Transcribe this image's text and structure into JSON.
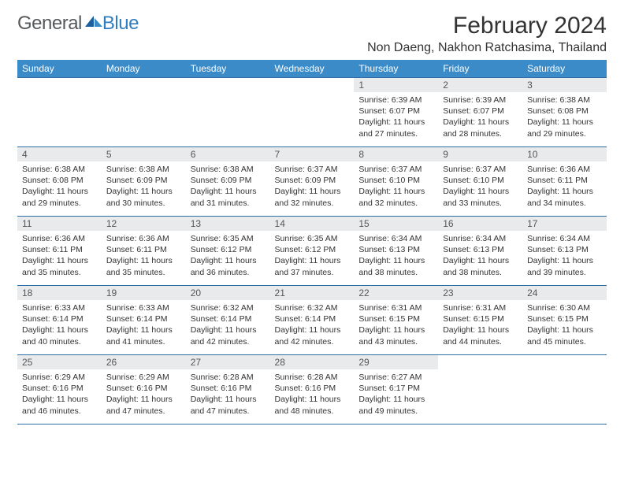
{
  "brand": {
    "main": "General",
    "accent": "Blue"
  },
  "title": "February 2024",
  "location": "Non Daeng, Nakhon Ratchasima, Thailand",
  "colors": {
    "header_bg": "#3b8bc9",
    "header_fg": "#ffffff",
    "daynum_bg": "#e9eaeb",
    "border": "#2f6fa5",
    "logo_accent": "#2f7ec2",
    "logo_main": "#555a5e"
  },
  "weekdays": [
    "Sunday",
    "Monday",
    "Tuesday",
    "Wednesday",
    "Thursday",
    "Friday",
    "Saturday"
  ],
  "weeks": [
    [
      null,
      null,
      null,
      null,
      {
        "n": "1",
        "sr": "6:39 AM",
        "ss": "6:07 PM",
        "dl": "11 hours and 27 minutes."
      },
      {
        "n": "2",
        "sr": "6:39 AM",
        "ss": "6:07 PM",
        "dl": "11 hours and 28 minutes."
      },
      {
        "n": "3",
        "sr": "6:38 AM",
        "ss": "6:08 PM",
        "dl": "11 hours and 29 minutes."
      }
    ],
    [
      {
        "n": "4",
        "sr": "6:38 AM",
        "ss": "6:08 PM",
        "dl": "11 hours and 29 minutes."
      },
      {
        "n": "5",
        "sr": "6:38 AM",
        "ss": "6:09 PM",
        "dl": "11 hours and 30 minutes."
      },
      {
        "n": "6",
        "sr": "6:38 AM",
        "ss": "6:09 PM",
        "dl": "11 hours and 31 minutes."
      },
      {
        "n": "7",
        "sr": "6:37 AM",
        "ss": "6:09 PM",
        "dl": "11 hours and 32 minutes."
      },
      {
        "n": "8",
        "sr": "6:37 AM",
        "ss": "6:10 PM",
        "dl": "11 hours and 32 minutes."
      },
      {
        "n": "9",
        "sr": "6:37 AM",
        "ss": "6:10 PM",
        "dl": "11 hours and 33 minutes."
      },
      {
        "n": "10",
        "sr": "6:36 AM",
        "ss": "6:11 PM",
        "dl": "11 hours and 34 minutes."
      }
    ],
    [
      {
        "n": "11",
        "sr": "6:36 AM",
        "ss": "6:11 PM",
        "dl": "11 hours and 35 minutes."
      },
      {
        "n": "12",
        "sr": "6:36 AM",
        "ss": "6:11 PM",
        "dl": "11 hours and 35 minutes."
      },
      {
        "n": "13",
        "sr": "6:35 AM",
        "ss": "6:12 PM",
        "dl": "11 hours and 36 minutes."
      },
      {
        "n": "14",
        "sr": "6:35 AM",
        "ss": "6:12 PM",
        "dl": "11 hours and 37 minutes."
      },
      {
        "n": "15",
        "sr": "6:34 AM",
        "ss": "6:13 PM",
        "dl": "11 hours and 38 minutes."
      },
      {
        "n": "16",
        "sr": "6:34 AM",
        "ss": "6:13 PM",
        "dl": "11 hours and 38 minutes."
      },
      {
        "n": "17",
        "sr": "6:34 AM",
        "ss": "6:13 PM",
        "dl": "11 hours and 39 minutes."
      }
    ],
    [
      {
        "n": "18",
        "sr": "6:33 AM",
        "ss": "6:14 PM",
        "dl": "11 hours and 40 minutes."
      },
      {
        "n": "19",
        "sr": "6:33 AM",
        "ss": "6:14 PM",
        "dl": "11 hours and 41 minutes."
      },
      {
        "n": "20",
        "sr": "6:32 AM",
        "ss": "6:14 PM",
        "dl": "11 hours and 42 minutes."
      },
      {
        "n": "21",
        "sr": "6:32 AM",
        "ss": "6:14 PM",
        "dl": "11 hours and 42 minutes."
      },
      {
        "n": "22",
        "sr": "6:31 AM",
        "ss": "6:15 PM",
        "dl": "11 hours and 43 minutes."
      },
      {
        "n": "23",
        "sr": "6:31 AM",
        "ss": "6:15 PM",
        "dl": "11 hours and 44 minutes."
      },
      {
        "n": "24",
        "sr": "6:30 AM",
        "ss": "6:15 PM",
        "dl": "11 hours and 45 minutes."
      }
    ],
    [
      {
        "n": "25",
        "sr": "6:29 AM",
        "ss": "6:16 PM",
        "dl": "11 hours and 46 minutes."
      },
      {
        "n": "26",
        "sr": "6:29 AM",
        "ss": "6:16 PM",
        "dl": "11 hours and 47 minutes."
      },
      {
        "n": "27",
        "sr": "6:28 AM",
        "ss": "6:16 PM",
        "dl": "11 hours and 47 minutes."
      },
      {
        "n": "28",
        "sr": "6:28 AM",
        "ss": "6:16 PM",
        "dl": "11 hours and 48 minutes."
      },
      {
        "n": "29",
        "sr": "6:27 AM",
        "ss": "6:17 PM",
        "dl": "11 hours and 49 minutes."
      },
      null,
      null
    ]
  ],
  "labels": {
    "sunrise": "Sunrise:",
    "sunset": "Sunset:",
    "daylight": "Daylight:"
  }
}
